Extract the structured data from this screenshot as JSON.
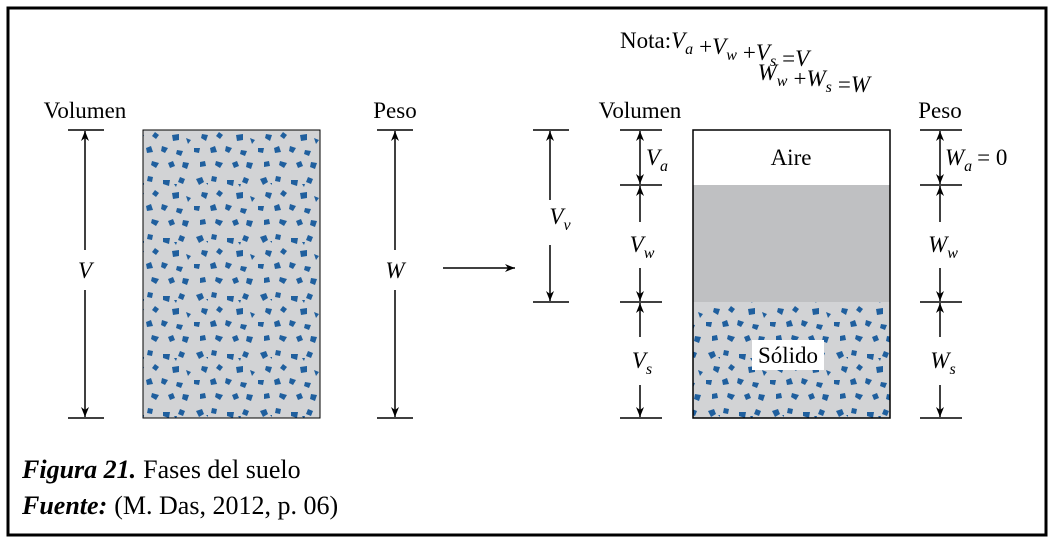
{
  "note": {
    "label": "Nota:",
    "equation_1": {
      "terms": [
        {
          "symbol": "V",
          "subscript": "a"
        },
        {
          "symbol": "V",
          "subscript": "w"
        },
        {
          "symbol": "V",
          "subscript": "s"
        }
      ],
      "operators": [
        "+",
        "+",
        "="
      ],
      "result": "V"
    },
    "equation_2": {
      "terms": [
        {
          "symbol": "W",
          "subscript": "w"
        },
        {
          "symbol": "W",
          "subscript": "s"
        }
      ],
      "operators": [
        "+",
        "="
      ],
      "result": "W"
    }
  },
  "left_diagram": {
    "volume_label": "Volumen",
    "weight_label": "Peso",
    "volume_symbol": "V",
    "weight_symbol": "W"
  },
  "right_diagram": {
    "volume_label": "Volumen",
    "weight_label": "Peso",
    "voids": {
      "symbol": "V",
      "subscript": "v"
    },
    "air": {
      "name": "Aire",
      "volume": {
        "symbol": "V",
        "subscript": "a"
      },
      "weight": {
        "symbol": "W",
        "subscript": "a",
        "value": "= 0"
      }
    },
    "water": {
      "volume": {
        "symbol": "V",
        "subscript": "w"
      },
      "weight": {
        "symbol": "W",
        "subscript": "w"
      }
    },
    "solid": {
      "name": "Sólido",
      "volume": {
        "symbol": "V",
        "subscript": "s"
      },
      "weight": {
        "symbol": "W",
        "subscript": "s"
      }
    }
  },
  "caption": {
    "figure_label": "Figura 21.",
    "figure_text": "Fases del suelo",
    "source_label": "Fuente:",
    "source_text": "(M. Das, 2012, p. 06)"
  }
}
